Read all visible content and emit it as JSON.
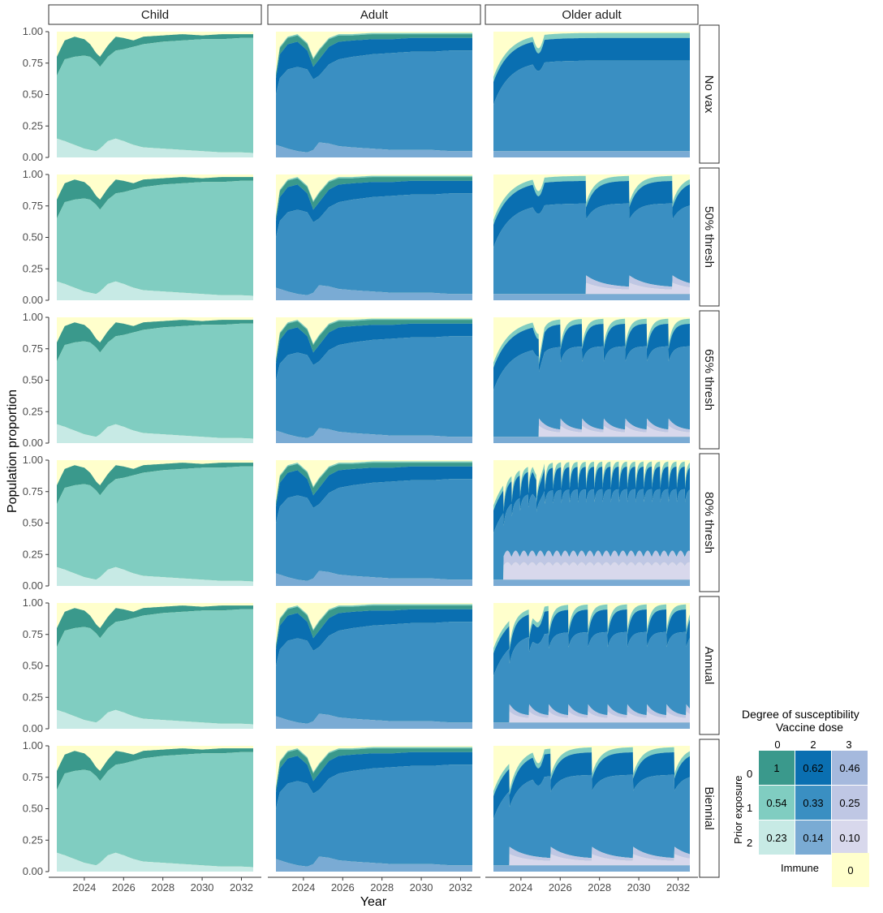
{
  "chart_data": {
    "type": "area",
    "stacked": true,
    "normalized": true,
    "xlabel": "Year",
    "ylabel": "Population proportion",
    "x_range": [
      2022.6,
      2032.6
    ],
    "ylim": [
      0,
      1
    ],
    "yticks": [
      "0.00",
      "0.25",
      "0.50",
      "0.75",
      "1.00"
    ],
    "xticks": [
      "2024",
      "2026",
      "2028",
      "2030",
      "2032"
    ],
    "columns": [
      "Child",
      "Adult",
      "Older adult"
    ],
    "rows": [
      "No vax",
      "50% thresh",
      "65% thresh",
      "80% thresh",
      "Annual",
      "Biennial"
    ],
    "grid": false,
    "legend": {
      "title": "Degree of susceptibility",
      "subtitle": "Vaccine dose",
      "x_header": "Vaccine dose",
      "y_header": "Prior exposure",
      "col_labels": [
        "0",
        "2",
        "3"
      ],
      "row_labels": [
        "0",
        "1",
        "2"
      ],
      "cells": [
        [
          "1",
          "0.62",
          "0.46"
        ],
        [
          "0.54",
          "0.33",
          "0.25"
        ],
        [
          "0.23",
          "0.14",
          "0.10"
        ]
      ],
      "immune_label": "Immune",
      "immune_value": "0",
      "placement": "bottom-right"
    },
    "colors": {
      "d0e0": "#3a998c",
      "d0e1": "#80cdc1",
      "d0e2": "#c7eae5",
      "d2e0": "#0a6fb1",
      "d2e1": "#3a8fc2",
      "d2e2": "#7aabd4",
      "d3e0": "#a5b9dd",
      "d3e1": "#bfc7e4",
      "d3e2": "#d8d8ec",
      "immune": "#ffffcc"
    },
    "panels": {
      "Child": {
        "x": [
          2022.6,
          2023.0,
          2023.5,
          2024.0,
          2024.3,
          2024.6,
          2024.8,
          2025.2,
          2025.6,
          2026.0,
          2026.5,
          2027.0,
          2028.0,
          2029.0,
          2030.0,
          2031.0,
          2032.0,
          2032.6
        ],
        "bottom": [
          0.15,
          0.13,
          0.1,
          0.07,
          0.06,
          0.05,
          0.07,
          0.13,
          0.15,
          0.13,
          0.1,
          0.08,
          0.07,
          0.06,
          0.05,
          0.04,
          0.04,
          0.035
        ],
        "middle": [
          0.65,
          0.78,
          0.8,
          0.81,
          0.8,
          0.76,
          0.72,
          0.8,
          0.85,
          0.86,
          0.88,
          0.9,
          0.92,
          0.93,
          0.94,
          0.94,
          0.95,
          0.95
        ],
        "top": [
          0.8,
          0.93,
          0.96,
          0.94,
          0.9,
          0.83,
          0.8,
          0.89,
          0.96,
          0.95,
          0.93,
          0.96,
          0.97,
          0.98,
          0.97,
          0.98,
          0.98,
          0.98
        ]
      },
      "Adult": {
        "x": [
          2022.6,
          2022.8,
          2023.2,
          2023.7,
          2024.2,
          2024.5,
          2024.8,
          2025.3,
          2025.8,
          2026.5,
          2027.5,
          2028.5,
          2029.5,
          2030.5,
          2031.5,
          2032.6
        ],
        "bottom": [
          0.1,
          0.09,
          0.07,
          0.05,
          0.04,
          0.06,
          0.12,
          0.11,
          0.09,
          0.08,
          0.07,
          0.06,
          0.06,
          0.06,
          0.05,
          0.05
        ],
        "middle": [
          0.5,
          0.63,
          0.7,
          0.72,
          0.7,
          0.62,
          0.65,
          0.74,
          0.78,
          0.8,
          0.82,
          0.83,
          0.84,
          0.84,
          0.85,
          0.85
        ],
        "dark": [
          0.63,
          0.82,
          0.9,
          0.92,
          0.85,
          0.72,
          0.78,
          0.88,
          0.92,
          0.93,
          0.94,
          0.94,
          0.95,
          0.95,
          0.95,
          0.95
        ],
        "top": [
          0.66,
          0.87,
          0.95,
          0.97,
          0.9,
          0.78,
          0.85,
          0.94,
          0.97,
          0.97,
          0.98,
          0.98,
          0.98,
          0.98,
          0.98,
          0.98
        ]
      }
    }
  }
}
